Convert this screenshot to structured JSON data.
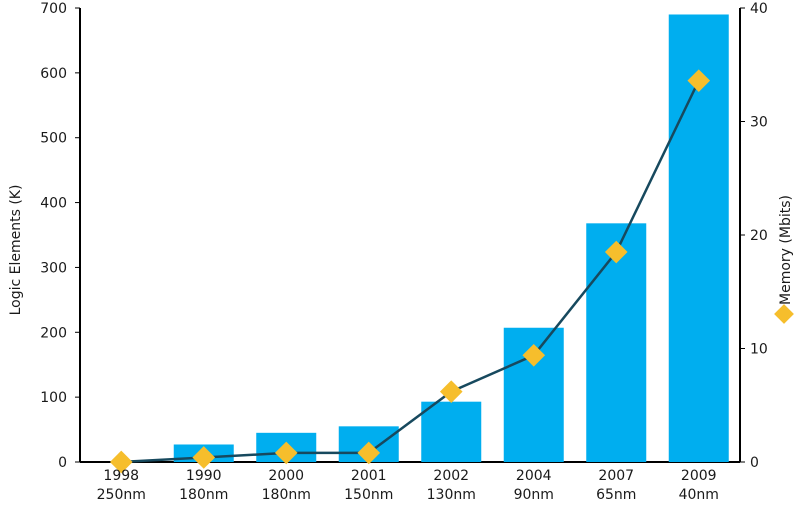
{
  "chart_data": {
    "type": "bar",
    "categories": [
      {
        "year": "1998",
        "node": "250nm"
      },
      {
        "year": "1990",
        "node": "180nm"
      },
      {
        "year": "2000",
        "node": "180nm"
      },
      {
        "year": "2001",
        "node": "150nm"
      },
      {
        "year": "2002",
        "node": "130nm"
      },
      {
        "year": "2004",
        "node": "90nm"
      },
      {
        "year": "2007",
        "node": "65nm"
      },
      {
        "year": "2009",
        "node": "40nm"
      }
    ],
    "series": [
      {
        "axis": "left",
        "type": "bar",
        "color": "#00aeef",
        "values": [
          0,
          27,
          45,
          55,
          93,
          207,
          368,
          690
        ]
      },
      {
        "axis": "right",
        "type": "line",
        "name": "Memory (Mbits)",
        "color": "#f6be2c",
        "line_color": "#17495e",
        "values": [
          0,
          0.4,
          0.8,
          0.8,
          6.2,
          9.4,
          18.5,
          33.6
        ]
      }
    ],
    "ylabel": "Logic Elements (K)",
    "ylabel_right": "Memory (Mbits)",
    "ylim": [
      0,
      700
    ],
    "y_ticks": [
      0,
      100,
      200,
      300,
      400,
      500,
      600,
      700
    ],
    "ylim_right": [
      0,
      40
    ],
    "y_ticks_right": [
      0,
      10,
      20,
      30,
      40
    ],
    "grid": false,
    "legend": "right"
  }
}
